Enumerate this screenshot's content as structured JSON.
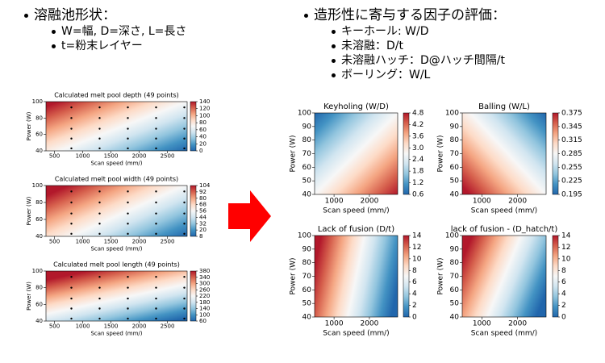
{
  "left_bullets": {
    "title": "溶融池形状：",
    "items": [
      "W=幅, D=深さ, L=長さ",
      "t=粉末レイヤー"
    ]
  },
  "right_bullets": {
    "title": "造形性に寄与する因子の評価：",
    "items": [
      "キーホール: W/D",
      "未溶融：D/t",
      "未溶融ハッチ：D@ハッチ間隔/t",
      "ボーリング：W/L"
    ]
  },
  "chart_data": [
    {
      "type": "contour",
      "title": "Calculated melt pool depth (49 points)",
      "x_label": "Scan speed (mm/)",
      "y_label": "Power (W)",
      "xlim": [
        350,
        2850
      ],
      "ylim": [
        40,
        100
      ],
      "xticks": [
        500,
        1000,
        1500,
        2000,
        2500
      ],
      "yticks": [
        40,
        60,
        80,
        100
      ],
      "colorbar_lim": [
        0,
        140
      ],
      "colorbar_ticks": [
        0,
        20,
        40,
        60,
        80,
        100,
        120,
        140
      ],
      "colormap": [
        "#2166ac",
        "#4393c3",
        "#92c5de",
        "#d1e5f0",
        "#f7f7f7",
        "#fddbc7",
        "#f4a582",
        "#d6604d",
        "#b2182b"
      ],
      "points": {
        "x": [
          800,
          1300,
          1800,
          2300,
          2800
        ],
        "y": [
          43,
          55,
          67,
          80,
          93
        ]
      }
    },
    {
      "type": "contour",
      "title": "Calculated melt pool width (49 points)",
      "x_label": "Scan speed (mm/)",
      "y_label": "Power (W)",
      "xlim": [
        350,
        2850
      ],
      "ylim": [
        40,
        100
      ],
      "xticks": [
        500,
        1000,
        1500,
        2000,
        2500
      ],
      "yticks": [
        40,
        60,
        80,
        100
      ],
      "colorbar_lim": [
        8,
        104
      ],
      "colorbar_ticks": [
        8,
        20,
        32,
        44,
        56,
        68,
        80,
        92,
        104
      ],
      "colormap": [
        "#2166ac",
        "#4393c3",
        "#92c5de",
        "#d1e5f0",
        "#f7f7f7",
        "#fddbc7",
        "#f4a582",
        "#d6604d",
        "#b2182b"
      ],
      "points": {
        "x": [
          800,
          1300,
          1800,
          2300,
          2800
        ],
        "y": [
          43,
          55,
          67,
          80,
          93
        ]
      }
    },
    {
      "type": "contour",
      "title": "Calculated melt pool length (49 points)",
      "x_label": "Scan speed (mm/)",
      "y_label": "Power (W)",
      "xlim": [
        350,
        2850
      ],
      "ylim": [
        40,
        100
      ],
      "xticks": [
        500,
        1000,
        1500,
        2000,
        2500
      ],
      "yticks": [
        40,
        60,
        80,
        100
      ],
      "colorbar_lim": [
        60,
        380
      ],
      "colorbar_ticks": [
        60,
        100,
        140,
        180,
        220,
        260,
        300,
        340,
        380
      ],
      "colormap": [
        "#2166ac",
        "#4393c3",
        "#92c5de",
        "#d1e5f0",
        "#f7f7f7",
        "#fddbc7",
        "#f4a582",
        "#d6604d",
        "#b2182b"
      ],
      "points": {
        "x": [
          800,
          1300,
          1800,
          2300,
          2800
        ],
        "y": [
          43,
          55,
          67,
          80,
          93
        ]
      }
    },
    {
      "type": "contour",
      "title": "Keyholing (W/D)",
      "x_label": "Scan speed (mm/)",
      "y_label": "Power (W)",
      "xlim": [
        450,
        2800
      ],
      "ylim": [
        40,
        100
      ],
      "xticks": [
        1000,
        2000
      ],
      "yticks": [
        40,
        50,
        60,
        70,
        80,
        90,
        100
      ],
      "colorbar_lim": [
        0.6,
        4.8
      ],
      "colorbar_ticks": [
        0.6,
        1.2,
        1.8,
        2.4,
        {
          "value": 3,
          "label": "3.0"
        },
        3.6,
        4.2,
        4.8
      ],
      "colormap": [
        "#2166ac",
        "#4393c3",
        "#92c5de",
        "#d1e5f0",
        "#f7f7f7",
        "#fddbc7",
        "#f4a582",
        "#d6604d",
        "#b2182b"
      ]
    },
    {
      "type": "contour",
      "title": "Balling (W/L)",
      "x_label": "Scan speed (mm/)",
      "y_label": "Power (W)",
      "xlim": [
        450,
        2800
      ],
      "ylim": [
        40,
        100
      ],
      "xticks": [
        1000,
        2000
      ],
      "yticks": [
        40,
        50,
        60,
        70,
        80,
        90,
        100
      ],
      "colorbar_lim": [
        0.195,
        0.375
      ],
      "colorbar_ticks": [
        0.195,
        0.225,
        0.255,
        0.285,
        0.315,
        0.345,
        0.375
      ],
      "colormap": [
        "#2166ac",
        "#4393c3",
        "#92c5de",
        "#d1e5f0",
        "#f7f7f7",
        "#fddbc7",
        "#f4a582",
        "#d6604d",
        "#b2182b"
      ]
    },
    {
      "type": "contour",
      "title": "Lack of fusion (D/t)",
      "x_label": "Scan speed (mm/)",
      "y_label": "Power (W)",
      "xlim": [
        450,
        2800
      ],
      "ylim": [
        40,
        100
      ],
      "xticks": [
        1000,
        2000
      ],
      "yticks": [
        40,
        50,
        60,
        70,
        80,
        90,
        100
      ],
      "colorbar_lim": [
        0,
        14
      ],
      "colorbar_ticks": [
        0,
        2,
        4,
        6,
        8,
        10,
        12,
        14
      ],
      "colormap": [
        "#2166ac",
        "#4393c3",
        "#92c5de",
        "#d1e5f0",
        "#f7f7f7",
        "#fddbc7",
        "#f4a582",
        "#d6604d",
        "#b2182b"
      ]
    },
    {
      "type": "contour",
      "title": "lack of fusion -  (D_hatch/t)",
      "x_label": "Scan speed (mm/)",
      "y_label": "Power (W)",
      "xlim": [
        450,
        2800
      ],
      "ylim": [
        40,
        100
      ],
      "xticks": [
        1000,
        2000
      ],
      "yticks": [
        40,
        50,
        60,
        70,
        80,
        90,
        100
      ],
      "colorbar_lim": [
        0,
        14
      ],
      "colorbar_ticks": [
        0,
        2,
        4,
        6,
        8,
        10,
        12,
        14
      ],
      "colormap": [
        "#2166ac",
        "#4393c3",
        "#92c5de",
        "#d1e5f0",
        "#f7f7f7",
        "#fddbc7",
        "#f4a582",
        "#d6604d",
        "#b2182b"
      ]
    }
  ]
}
